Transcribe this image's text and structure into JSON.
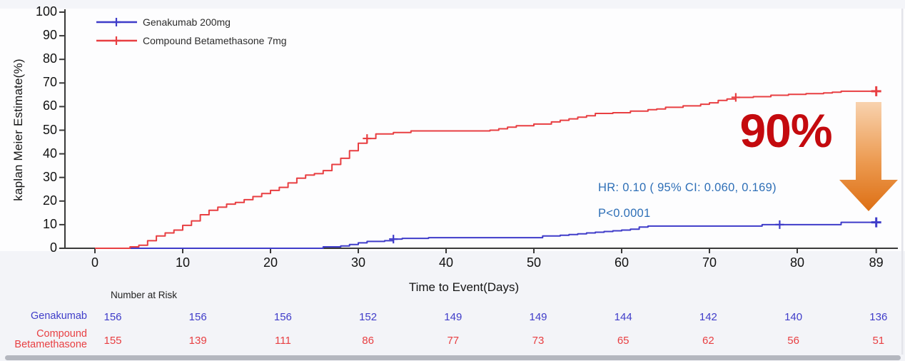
{
  "chart_data": {
    "type": "line",
    "subtype": "kaplan-meier-step",
    "title": "",
    "xlabel": "Time to Event(Days)",
    "ylabel": "kaplan Meier Estimate(%)",
    "xlim": [
      0,
      89
    ],
    "ylim": [
      0,
      100
    ],
    "x_ticks": [
      0,
      10,
      20,
      30,
      40,
      50,
      60,
      70,
      80,
      89
    ],
    "y_ticks": [
      0,
      10,
      20,
      30,
      40,
      50,
      60,
      70,
      80,
      90,
      100
    ],
    "grid": false,
    "legend_position": "top-left",
    "series": [
      {
        "name": "Genakumab 200mg",
        "color": "#3f3cc9",
        "step_points": [
          [
            0,
            0
          ],
          [
            26,
            0.6
          ],
          [
            28,
            1.0
          ],
          [
            29,
            1.6
          ],
          [
            30,
            2.3
          ],
          [
            31,
            2.9
          ],
          [
            33,
            3.2
          ],
          [
            34,
            3.9
          ],
          [
            35,
            4.2
          ],
          [
            38,
            4.5
          ],
          [
            51,
            5.2
          ],
          [
            53,
            5.5
          ],
          [
            54,
            5.8
          ],
          [
            55,
            6.1
          ],
          [
            56,
            6.5
          ],
          [
            57,
            6.8
          ],
          [
            58,
            7.1
          ],
          [
            59,
            7.4
          ],
          [
            60,
            7.7
          ],
          [
            61,
            8.1
          ],
          [
            62,
            9.0
          ],
          [
            63,
            9.4
          ],
          [
            76,
            10.0
          ],
          [
            85,
            11.0
          ],
          [
            89,
            11.0
          ]
        ],
        "censor_marks": [
          [
            34,
            3.9
          ],
          [
            78,
            10.0
          ],
          [
            89,
            11.0
          ]
        ]
      },
      {
        "name": "Compound Betamethasone 7mg",
        "color": "#e83f42",
        "step_points": [
          [
            0,
            0
          ],
          [
            4,
            0.6
          ],
          [
            5,
            1.3
          ],
          [
            6,
            3.2
          ],
          [
            7,
            5.2
          ],
          [
            8,
            6.5
          ],
          [
            9,
            7.7
          ],
          [
            10,
            9.7
          ],
          [
            11,
            11.6
          ],
          [
            12,
            14.2
          ],
          [
            13,
            16.1
          ],
          [
            14,
            17.4
          ],
          [
            15,
            18.7
          ],
          [
            16,
            19.4
          ],
          [
            17,
            20.6
          ],
          [
            18,
            21.9
          ],
          [
            19,
            23.2
          ],
          [
            20,
            24.5
          ],
          [
            21,
            25.8
          ],
          [
            22,
            27.7
          ],
          [
            23,
            29.7
          ],
          [
            24,
            31.0
          ],
          [
            25,
            31.6
          ],
          [
            26,
            32.9
          ],
          [
            27,
            35.5
          ],
          [
            28,
            38.1
          ],
          [
            29,
            41.3
          ],
          [
            30,
            44.5
          ],
          [
            31,
            46.5
          ],
          [
            32,
            48.4
          ],
          [
            34,
            49.0
          ],
          [
            36,
            49.7
          ],
          [
            45,
            50.0
          ],
          [
            46,
            50.6
          ],
          [
            47,
            51.3
          ],
          [
            48,
            51.9
          ],
          [
            50,
            52.6
          ],
          [
            52,
            53.5
          ],
          [
            53,
            54.2
          ],
          [
            54,
            54.8
          ],
          [
            55,
            55.5
          ],
          [
            56,
            56.1
          ],
          [
            57,
            57.1
          ],
          [
            59,
            57.4
          ],
          [
            61,
            58.1
          ],
          [
            63,
            58.7
          ],
          [
            64,
            59.0
          ],
          [
            65,
            59.7
          ],
          [
            67,
            60.3
          ],
          [
            69,
            61.0
          ],
          [
            70,
            61.6
          ],
          [
            71,
            62.6
          ],
          [
            72,
            63.2
          ],
          [
            73,
            63.9
          ],
          [
            75,
            64.2
          ],
          [
            77,
            64.8
          ],
          [
            79,
            65.2
          ],
          [
            81,
            65.5
          ],
          [
            83,
            65.8
          ],
          [
            84,
            66.1
          ],
          [
            85,
            66.5
          ],
          [
            89,
            66.5
          ]
        ],
        "censor_marks": [
          [
            31,
            46.5
          ],
          [
            73,
            63.9
          ],
          [
            89,
            66.5
          ]
        ]
      }
    ]
  },
  "annotations": {
    "hr_text": "HR:  0.10  ( 95% CI:  0.060, 0.169)",
    "p_text": "P<0.0001",
    "hr_color": "#2e6fb7",
    "highlight_value": "90%",
    "highlight_color": "#c40a0e",
    "arrow_icon": "down-arrow",
    "arrow_color_top": "#f8d2ae",
    "arrow_color_bottom": "#dd6f14"
  },
  "risk_table": {
    "header": "Number at Risk",
    "columns": [
      0,
      10,
      20,
      30,
      40,
      50,
      60,
      70,
      80,
      89
    ],
    "rows": [
      {
        "label": "Genakumab",
        "color": "#3f3cc9",
        "values": [
          156,
          156,
          156,
          152,
          149,
          149,
          144,
          142,
          140,
          136
        ]
      },
      {
        "label": "Compound Betamethasone",
        "color": "#e83f42",
        "values": [
          155,
          139,
          111,
          86,
          77,
          73,
          65,
          62,
          56,
          51
        ]
      }
    ]
  }
}
